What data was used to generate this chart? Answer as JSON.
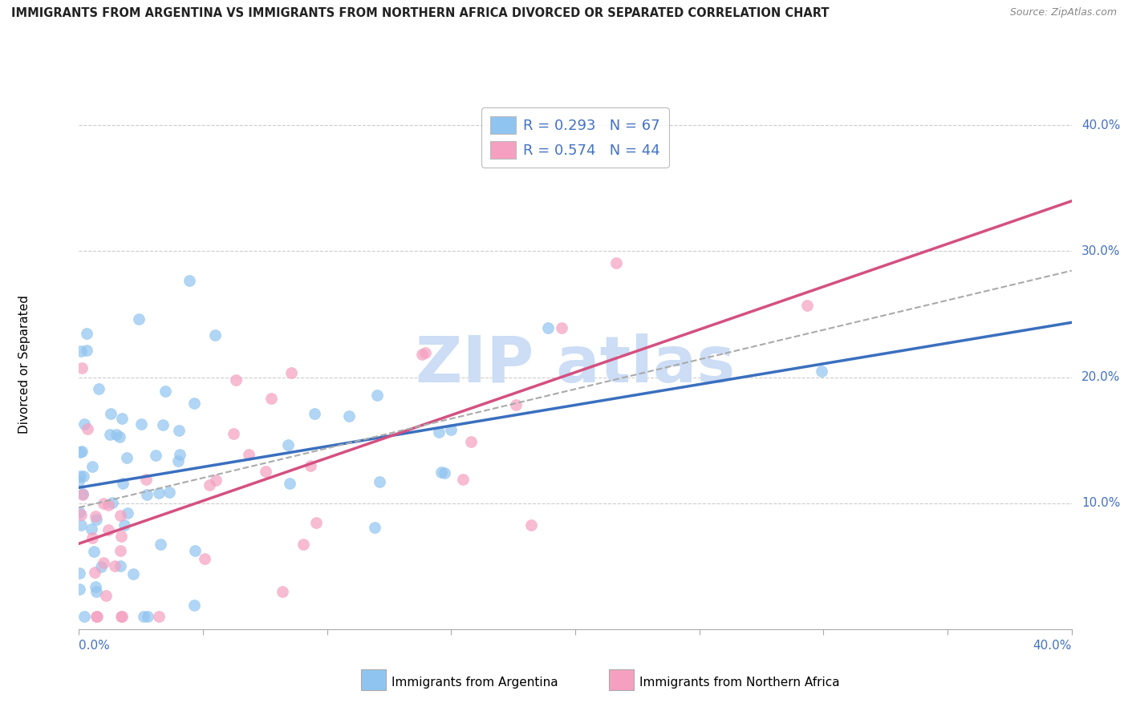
{
  "title": "IMMIGRANTS FROM ARGENTINA VS IMMIGRANTS FROM NORTHERN AFRICA DIVORCED OR SEPARATED CORRELATION CHART",
  "source": "Source: ZipAtlas.com",
  "ylabel": "Divorced or Separated",
  "color_argentina": "#90C4F0",
  "color_n_africa": "#F5A0C0",
  "trendline_argentina": "#3A6FBF",
  "trendline_n_africa": "#D45080",
  "trendline_dashed": "#AAAAAA",
  "label_color": "#4472C4",
  "R_argentina": 0.293,
  "N_argentina": 67,
  "R_n_africa": 0.574,
  "N_n_africa": 44,
  "xmin": 0.0,
  "xmax": 0.4,
  "ymin": 0.0,
  "ymax": 0.42,
  "ytick_vals": [
    0.1,
    0.2,
    0.3,
    0.4
  ],
  "ytick_labels": [
    "10.0%",
    "20.0%",
    "30.0%",
    "40.0%"
  ],
  "watermark_text": "ZIP atlas",
  "watermark_color": "#CCDDF5",
  "legend_r_arg": "R = 0.293",
  "legend_n_arg": "N = 67",
  "legend_r_naf": "R = 0.574",
  "legend_n_naf": "N = 44"
}
